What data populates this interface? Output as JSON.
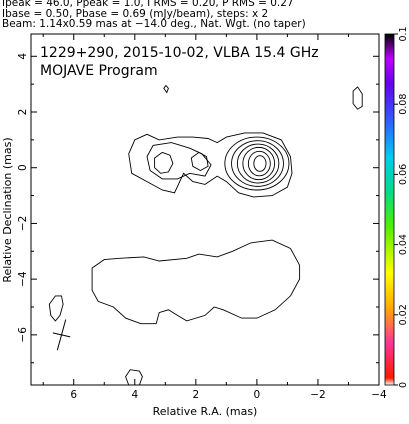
{
  "header": {
    "line1": "Ipeak = 46.0, Ppeak = 1.0, I RMS = 0.20, P RMS = 0.27",
    "line2": "Ibase = 0.50, Pbase = 0.69 (mJy/beam), steps: x 2",
    "line3": "Beam: 1.14x0.59 mas at −14.0 deg., Nat. Wgt. (no taper)"
  },
  "chart_data": {
    "type": "contour",
    "title": "1229+290, 2015-10-02, VLBA 15.4 GHz",
    "subtitle": "MOJAVE Program",
    "xlabel": "Relative R.A. (mas)",
    "ylabel": "Relative Declination (mas)",
    "xlim": [
      7.4,
      -4.0
    ],
    "ylim": [
      -7.8,
      4.8
    ],
    "x_ticks": [
      6,
      4,
      2,
      0,
      -2,
      -4
    ],
    "x_tick_labels": [
      "6",
      "4",
      "2",
      "0",
      "−2",
      "−4"
    ],
    "y_ticks": [
      4,
      2,
      0,
      -2,
      -4,
      -6
    ],
    "y_tick_labels": [
      "4",
      "2",
      "0",
      "−2",
      "−4",
      "−6"
    ],
    "colorbar": {
      "range": [
        0,
        0.1
      ],
      "ticks": [
        0,
        0.02,
        0.04,
        0.06,
        0.08,
        0.1
      ],
      "tick_labels": [
        "0",
        "0.02",
        "0.04",
        "0.06",
        "0.08",
        "0.1"
      ]
    },
    "contour_base_mJy_per_beam": 0.5,
    "contour_step_factor": 2,
    "core": {
      "x": 0.0,
      "y": 0.1,
      "peak_mJy_per_beam": 46.0,
      "levels": 6
    },
    "beam": {
      "major_mas": 1.14,
      "minor_mas": 0.59,
      "pa_deg": -14.0,
      "center": [
        6.4,
        -6.0
      ]
    },
    "features": [
      {
        "name": "jet-knot",
        "x": 3.0,
        "y": 0.2
      },
      {
        "name": "southern-lobe",
        "x": 1.5,
        "y": -4.0
      },
      {
        "name": "small-blob-top",
        "x": 3.0,
        "y": 2.8
      },
      {
        "name": "blob-right",
        "x": -3.3,
        "y": 2.5
      },
      {
        "name": "blob-left",
        "x": 6.5,
        "y": -4.9
      },
      {
        "name": "blob-bottom",
        "x": 4.0,
        "y": -7.5
      }
    ]
  }
}
